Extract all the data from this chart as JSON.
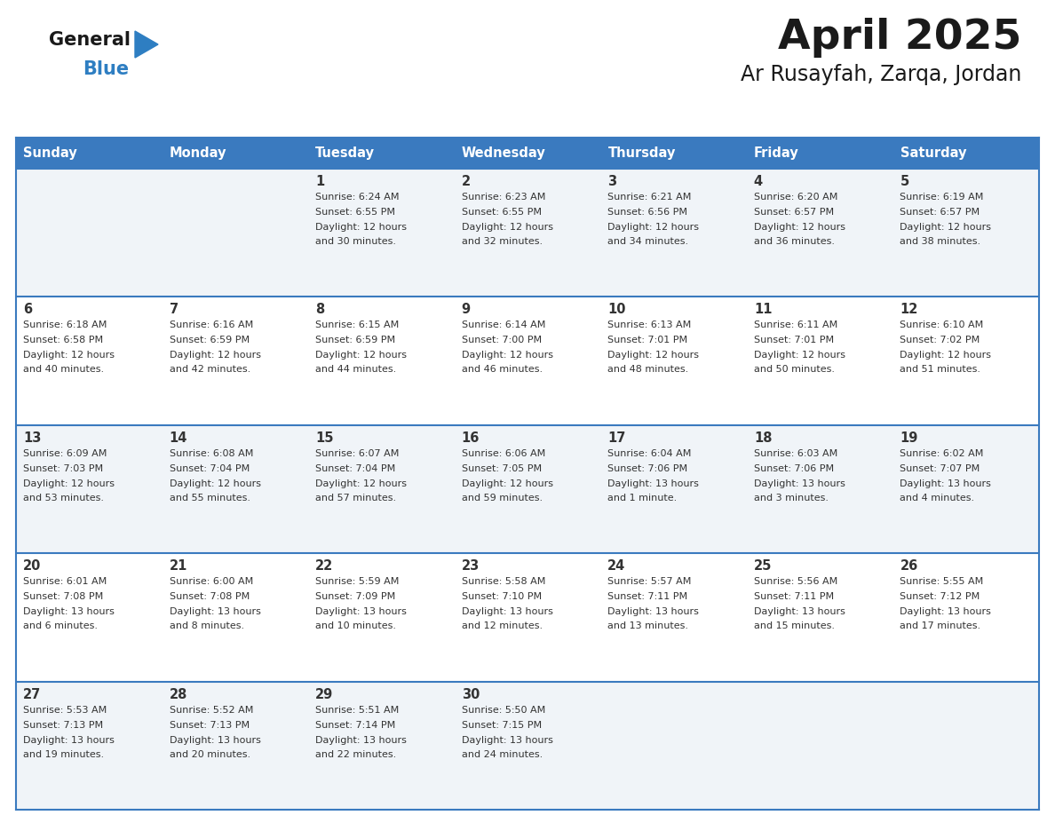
{
  "title": "April 2025",
  "subtitle": "Ar Rusayfah, Zarqa, Jordan",
  "days_of_week": [
    "Sunday",
    "Monday",
    "Tuesday",
    "Wednesday",
    "Thursday",
    "Friday",
    "Saturday"
  ],
  "header_bg": "#3a7abf",
  "header_text": "#ffffff",
  "row_bg_odd": "#f0f4f8",
  "row_bg_even": "#ffffff",
  "cell_border": "#3a7abf",
  "title_color": "#1a1a1a",
  "subtitle_color": "#1a1a1a",
  "day_text_color": "#333333",
  "logo_general_color": "#1a1a1a",
  "logo_blue_color": "#2e7ec2",
  "weeks": [
    {
      "days": [
        {
          "date": "",
          "sunrise": "",
          "sunset": "",
          "daylight": ""
        },
        {
          "date": "",
          "sunrise": "",
          "sunset": "",
          "daylight": ""
        },
        {
          "date": "1",
          "sunrise": "Sunrise: 6:24 AM",
          "sunset": "Sunset: 6:55 PM",
          "daylight": "Daylight: 12 hours\nand 30 minutes."
        },
        {
          "date": "2",
          "sunrise": "Sunrise: 6:23 AM",
          "sunset": "Sunset: 6:55 PM",
          "daylight": "Daylight: 12 hours\nand 32 minutes."
        },
        {
          "date": "3",
          "sunrise": "Sunrise: 6:21 AM",
          "sunset": "Sunset: 6:56 PM",
          "daylight": "Daylight: 12 hours\nand 34 minutes."
        },
        {
          "date": "4",
          "sunrise": "Sunrise: 6:20 AM",
          "sunset": "Sunset: 6:57 PM",
          "daylight": "Daylight: 12 hours\nand 36 minutes."
        },
        {
          "date": "5",
          "sunrise": "Sunrise: 6:19 AM",
          "sunset": "Sunset: 6:57 PM",
          "daylight": "Daylight: 12 hours\nand 38 minutes."
        }
      ]
    },
    {
      "days": [
        {
          "date": "6",
          "sunrise": "Sunrise: 6:18 AM",
          "sunset": "Sunset: 6:58 PM",
          "daylight": "Daylight: 12 hours\nand 40 minutes."
        },
        {
          "date": "7",
          "sunrise": "Sunrise: 6:16 AM",
          "sunset": "Sunset: 6:59 PM",
          "daylight": "Daylight: 12 hours\nand 42 minutes."
        },
        {
          "date": "8",
          "sunrise": "Sunrise: 6:15 AM",
          "sunset": "Sunset: 6:59 PM",
          "daylight": "Daylight: 12 hours\nand 44 minutes."
        },
        {
          "date": "9",
          "sunrise": "Sunrise: 6:14 AM",
          "sunset": "Sunset: 7:00 PM",
          "daylight": "Daylight: 12 hours\nand 46 minutes."
        },
        {
          "date": "10",
          "sunrise": "Sunrise: 6:13 AM",
          "sunset": "Sunset: 7:01 PM",
          "daylight": "Daylight: 12 hours\nand 48 minutes."
        },
        {
          "date": "11",
          "sunrise": "Sunrise: 6:11 AM",
          "sunset": "Sunset: 7:01 PM",
          "daylight": "Daylight: 12 hours\nand 50 minutes."
        },
        {
          "date": "12",
          "sunrise": "Sunrise: 6:10 AM",
          "sunset": "Sunset: 7:02 PM",
          "daylight": "Daylight: 12 hours\nand 51 minutes."
        }
      ]
    },
    {
      "days": [
        {
          "date": "13",
          "sunrise": "Sunrise: 6:09 AM",
          "sunset": "Sunset: 7:03 PM",
          "daylight": "Daylight: 12 hours\nand 53 minutes."
        },
        {
          "date": "14",
          "sunrise": "Sunrise: 6:08 AM",
          "sunset": "Sunset: 7:04 PM",
          "daylight": "Daylight: 12 hours\nand 55 minutes."
        },
        {
          "date": "15",
          "sunrise": "Sunrise: 6:07 AM",
          "sunset": "Sunset: 7:04 PM",
          "daylight": "Daylight: 12 hours\nand 57 minutes."
        },
        {
          "date": "16",
          "sunrise": "Sunrise: 6:06 AM",
          "sunset": "Sunset: 7:05 PM",
          "daylight": "Daylight: 12 hours\nand 59 minutes."
        },
        {
          "date": "17",
          "sunrise": "Sunrise: 6:04 AM",
          "sunset": "Sunset: 7:06 PM",
          "daylight": "Daylight: 13 hours\nand 1 minute."
        },
        {
          "date": "18",
          "sunrise": "Sunrise: 6:03 AM",
          "sunset": "Sunset: 7:06 PM",
          "daylight": "Daylight: 13 hours\nand 3 minutes."
        },
        {
          "date": "19",
          "sunrise": "Sunrise: 6:02 AM",
          "sunset": "Sunset: 7:07 PM",
          "daylight": "Daylight: 13 hours\nand 4 minutes."
        }
      ]
    },
    {
      "days": [
        {
          "date": "20",
          "sunrise": "Sunrise: 6:01 AM",
          "sunset": "Sunset: 7:08 PM",
          "daylight": "Daylight: 13 hours\nand 6 minutes."
        },
        {
          "date": "21",
          "sunrise": "Sunrise: 6:00 AM",
          "sunset": "Sunset: 7:08 PM",
          "daylight": "Daylight: 13 hours\nand 8 minutes."
        },
        {
          "date": "22",
          "sunrise": "Sunrise: 5:59 AM",
          "sunset": "Sunset: 7:09 PM",
          "daylight": "Daylight: 13 hours\nand 10 minutes."
        },
        {
          "date": "23",
          "sunrise": "Sunrise: 5:58 AM",
          "sunset": "Sunset: 7:10 PM",
          "daylight": "Daylight: 13 hours\nand 12 minutes."
        },
        {
          "date": "24",
          "sunrise": "Sunrise: 5:57 AM",
          "sunset": "Sunset: 7:11 PM",
          "daylight": "Daylight: 13 hours\nand 13 minutes."
        },
        {
          "date": "25",
          "sunrise": "Sunrise: 5:56 AM",
          "sunset": "Sunset: 7:11 PM",
          "daylight": "Daylight: 13 hours\nand 15 minutes."
        },
        {
          "date": "26",
          "sunrise": "Sunrise: 5:55 AM",
          "sunset": "Sunset: 7:12 PM",
          "daylight": "Daylight: 13 hours\nand 17 minutes."
        }
      ]
    },
    {
      "days": [
        {
          "date": "27",
          "sunrise": "Sunrise: 5:53 AM",
          "sunset": "Sunset: 7:13 PM",
          "daylight": "Daylight: 13 hours\nand 19 minutes."
        },
        {
          "date": "28",
          "sunrise": "Sunrise: 5:52 AM",
          "sunset": "Sunset: 7:13 PM",
          "daylight": "Daylight: 13 hours\nand 20 minutes."
        },
        {
          "date": "29",
          "sunrise": "Sunrise: 5:51 AM",
          "sunset": "Sunset: 7:14 PM",
          "daylight": "Daylight: 13 hours\nand 22 minutes."
        },
        {
          "date": "30",
          "sunrise": "Sunrise: 5:50 AM",
          "sunset": "Sunset: 7:15 PM",
          "daylight": "Daylight: 13 hours\nand 24 minutes."
        },
        {
          "date": "",
          "sunrise": "",
          "sunset": "",
          "daylight": ""
        },
        {
          "date": "",
          "sunrise": "",
          "sunset": "",
          "daylight": ""
        },
        {
          "date": "",
          "sunrise": "",
          "sunset": "",
          "daylight": ""
        }
      ]
    }
  ]
}
